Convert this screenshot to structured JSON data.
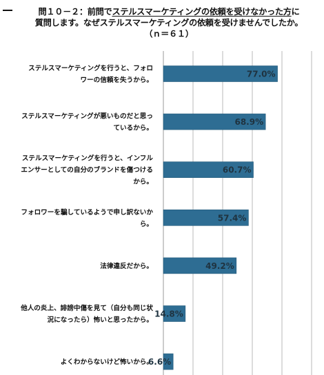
{
  "title": {
    "line1_prefix": "問１０－２：前問で",
    "line1_underlined": "ステルスマーケティングの依頼を受けなかった方",
    "line1_suffix": "に",
    "line2": "質問します。なぜステルスマーケティングの依頼を受けませんでしたか。",
    "line3": "（ｎ＝６１）"
  },
  "colors": {
    "bar": "#2e6d93",
    "bar_edge": "#245a7a",
    "grid": "#b8b8b8"
  },
  "chart_data": {
    "type": "bar",
    "orientation": "horizontal",
    "categories": [
      [
        "ステルスマーケティングを行うと、フォロ",
        "ワーの信頼を失うから。"
      ],
      [
        "ステルスマーケティングが悪いものだと思っ",
        "ているから。"
      ],
      [
        "ステルスマーケティングを行うと、インフル",
        "エンサーとしての自分のブランドを傷つける",
        "から。"
      ],
      [
        "フォロワーを騙しているようで申し訳ないか",
        "ら。"
      ],
      [
        "法律違反だから。"
      ],
      [
        "他人の炎上、誹謗中傷を見て（自分も同じ状",
        "況になったら）怖いと思ったから。"
      ],
      [
        "よくわからないけど怖いから。"
      ]
    ],
    "values": [
      77.0,
      68.9,
      60.7,
      57.4,
      49.2,
      14.8,
      6.6
    ],
    "value_labels": [
      "77.0%",
      "68.9%",
      "60.7%",
      "57.4%",
      "49.2%",
      "14.8%",
      "6.6%"
    ],
    "xlim": [
      0,
      100
    ],
    "grid": true
  }
}
